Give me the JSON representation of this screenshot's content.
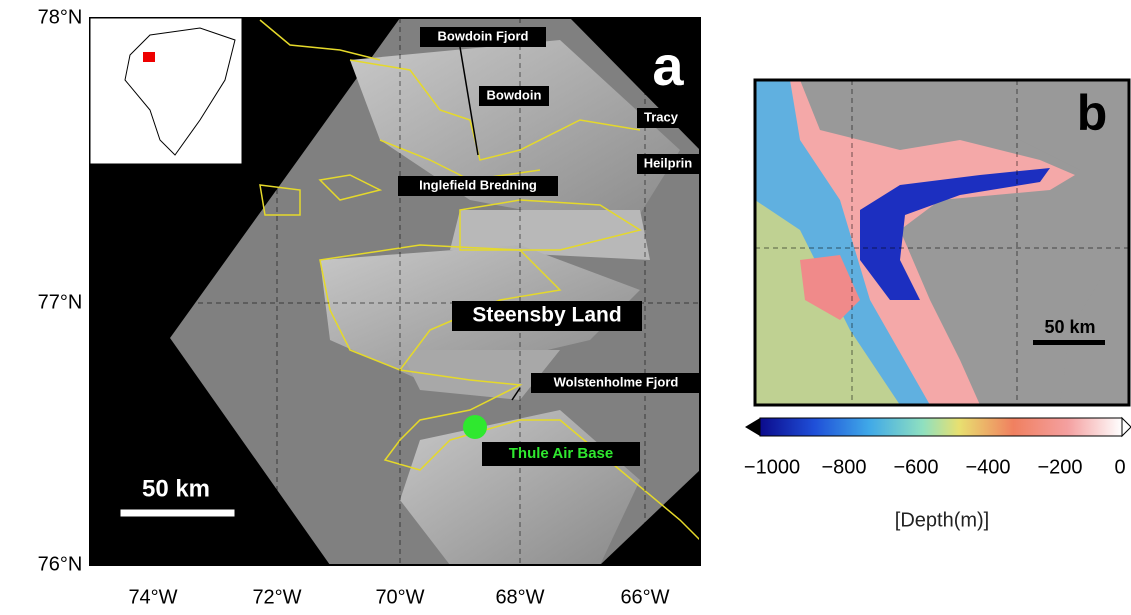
{
  "panel_a": {
    "label": "a",
    "lat_labels": [
      "78°N",
      "77°N",
      "76°N"
    ],
    "lon_labels": [
      "74°W",
      "72°W",
      "70°W",
      "68°W",
      "66°W"
    ],
    "places": [
      "Bowdoin Fjord",
      "Bowdoin",
      "Tracy",
      "Heilprin",
      "Inglefield Bredning",
      "Steensby Land",
      "Wolstenholme Fjord",
      "Thule Air Base"
    ],
    "scale": "50 km"
  },
  "panel_b": {
    "label": "b",
    "scale": "50 km",
    "colorbar_ticks": [
      "−1000",
      "−800",
      "−600",
      "−400",
      "−200",
      "0"
    ],
    "colorbar_label": "[Depth(m)]"
  }
}
